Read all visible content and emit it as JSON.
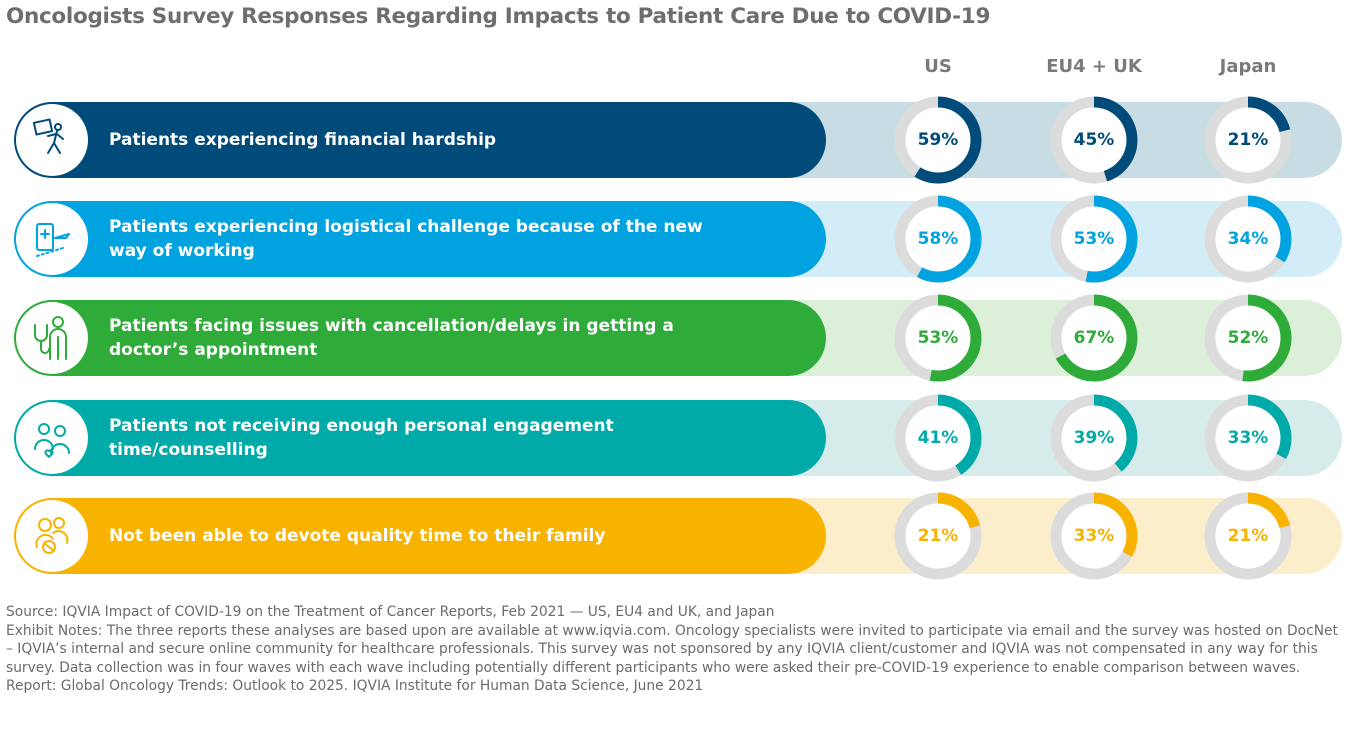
{
  "title": "Oncologists Survey Responses Regarding Impacts to Patient Care Due to COVID-19",
  "columns": [
    "US",
    "EU4 + UK",
    "Japan"
  ],
  "rows": [
    {
      "label": "Patients experiencing financial hardship",
      "icon": "financial-hardship-icon",
      "values": [
        "59%",
        "45%",
        "21%"
      ],
      "color": "#004b7a",
      "track_color": "#c8dce4",
      "text_color": "#004b7a"
    },
    {
      "label": "Patients experiencing logistical challenge because of the new way of working",
      "icon": "logistics-travel-icon",
      "values": [
        "58%",
        "53%",
        "34%"
      ],
      "color": "#00a3e0",
      "track_color": "#d2ecf8",
      "text_color": "#00a3e0"
    },
    {
      "label": "Patients facing issues with cancellation/delays in getting a doctor’s appointment",
      "icon": "doctor-stethoscope-icon",
      "values": [
        "53%",
        "67%",
        "52%"
      ],
      "color": "#2fab3a",
      "track_color": "#dcefd9",
      "text_color": "#2fab3a"
    },
    {
      "label": "Patients not receiving enough personal engagement time/counselling",
      "icon": "counselling-people-icon",
      "values": [
        "41%",
        "39%",
        "33%"
      ],
      "color": "#00aaa8",
      "track_color": "#d5ecea",
      "text_color": "#00aaa8"
    },
    {
      "label": "Not been able to devote quality time to their family",
      "icon": "family-icon",
      "values": [
        "21%",
        "33%",
        "21%"
      ],
      "color": "#f8b200",
      "track_color": "#fdeecb",
      "text_color": "#f8b200"
    }
  ],
  "chart_data": {
    "type": "donut",
    "title": "Oncologists Survey Responses Regarding Impacts to Patient Care Due to COVID-19",
    "categories": [
      "Patients experiencing financial hardship",
      "Patients experiencing logistical challenge because of the new way of working",
      "Patients facing issues with cancellation/delays in getting a doctor’s appointment",
      "Patients not receiving enough personal engagement time/counselling",
      "Not been able to devote quality time to their family"
    ],
    "series": [
      {
        "name": "US",
        "values": [
          59,
          58,
          53,
          41,
          21
        ]
      },
      {
        "name": "EU4 + UK",
        "values": [
          45,
          53,
          67,
          39,
          33
        ]
      },
      {
        "name": "Japan",
        "values": [
          21,
          34,
          52,
          33,
          21
        ]
      }
    ],
    "unit": "%",
    "ylim": [
      0,
      100
    ],
    "ring_remainder_color": "#dcdcdc"
  },
  "notes": {
    "source": "Source: IQVIA Impact of COVID-19 on the Treatment of Cancer Reports, Feb 2021 — US, EU4 and UK, and Japan",
    "exhibit_notes": "Exhibit Notes: The three reports these analyses are based upon are available at www.iqvia.com. Oncology specialists were invited to participate via email and the survey was hosted on DocNet – IQVIA’s internal and secure online community for healthcare professionals. This survey was not sponsored by any IQVIA client/customer and IQVIA was not compensated in any way for this survey. Data collection was in four waves with each wave including potentially different participants who were asked their pre-COVID-19 experience to enable comparison between waves.",
    "report": "Report: Global Oncology Trends: Outlook to 2025. IQVIA Institute for Human Data Science, June 2021"
  }
}
